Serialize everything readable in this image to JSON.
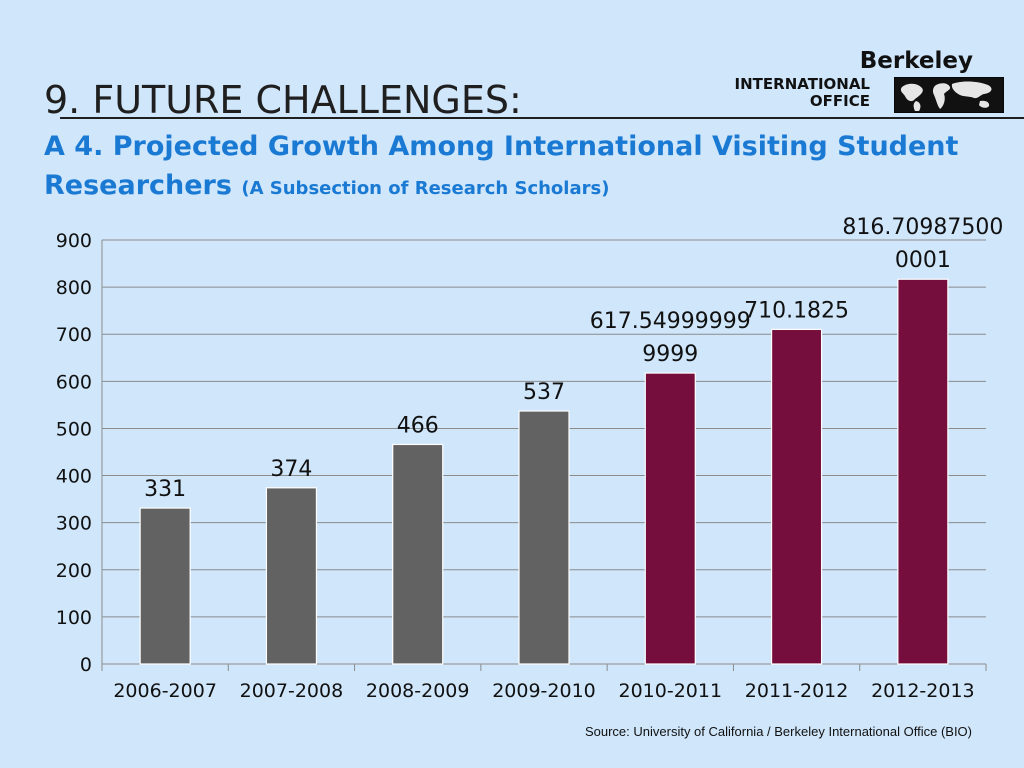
{
  "header": {
    "title": "9. FUTURE CHALLENGES:",
    "subtitle": "A 4. Projected Growth Among International Visiting Student Researchers",
    "subtitle_note": "(A Subsection of Research Scholars)"
  },
  "logo": {
    "brand": "Berkeley",
    "line1": "INTERNATIONAL",
    "line2": "OFFICE",
    "map_icon": "world-map-icon"
  },
  "source": "Source:  University of California / Berkeley International Office (BIO)",
  "colors": {
    "background": "#cfe6fb",
    "historical_bar": "#626262",
    "projected_bar": "#750e3c",
    "subtitle": "#1a7ad3",
    "gridline": "#8c8c8c"
  },
  "chart_data": {
    "type": "bar",
    "categories": [
      "2006-2007",
      "2007-2008",
      "2008-2009",
      "2009-2010",
      "2010-2011",
      "2011-2012",
      "2012-2013"
    ],
    "values": [
      331,
      374,
      466,
      537,
      617.549999999999,
      710.1825,
      816.709875000001
    ],
    "data_labels": [
      [
        "331"
      ],
      [
        "374"
      ],
      [
        "466"
      ],
      [
        "537"
      ],
      [
        "617.54999999",
        "9999"
      ],
      [
        "710.1825"
      ],
      [
        "816.70987500",
        "0001"
      ]
    ],
    "projected_from_index": 4,
    "ylim": [
      0,
      900
    ],
    "yticks": [
      0,
      100,
      200,
      300,
      400,
      500,
      600,
      700,
      800,
      900
    ],
    "xlabel": "",
    "ylabel": "",
    "grid": true,
    "legend": "none"
  }
}
